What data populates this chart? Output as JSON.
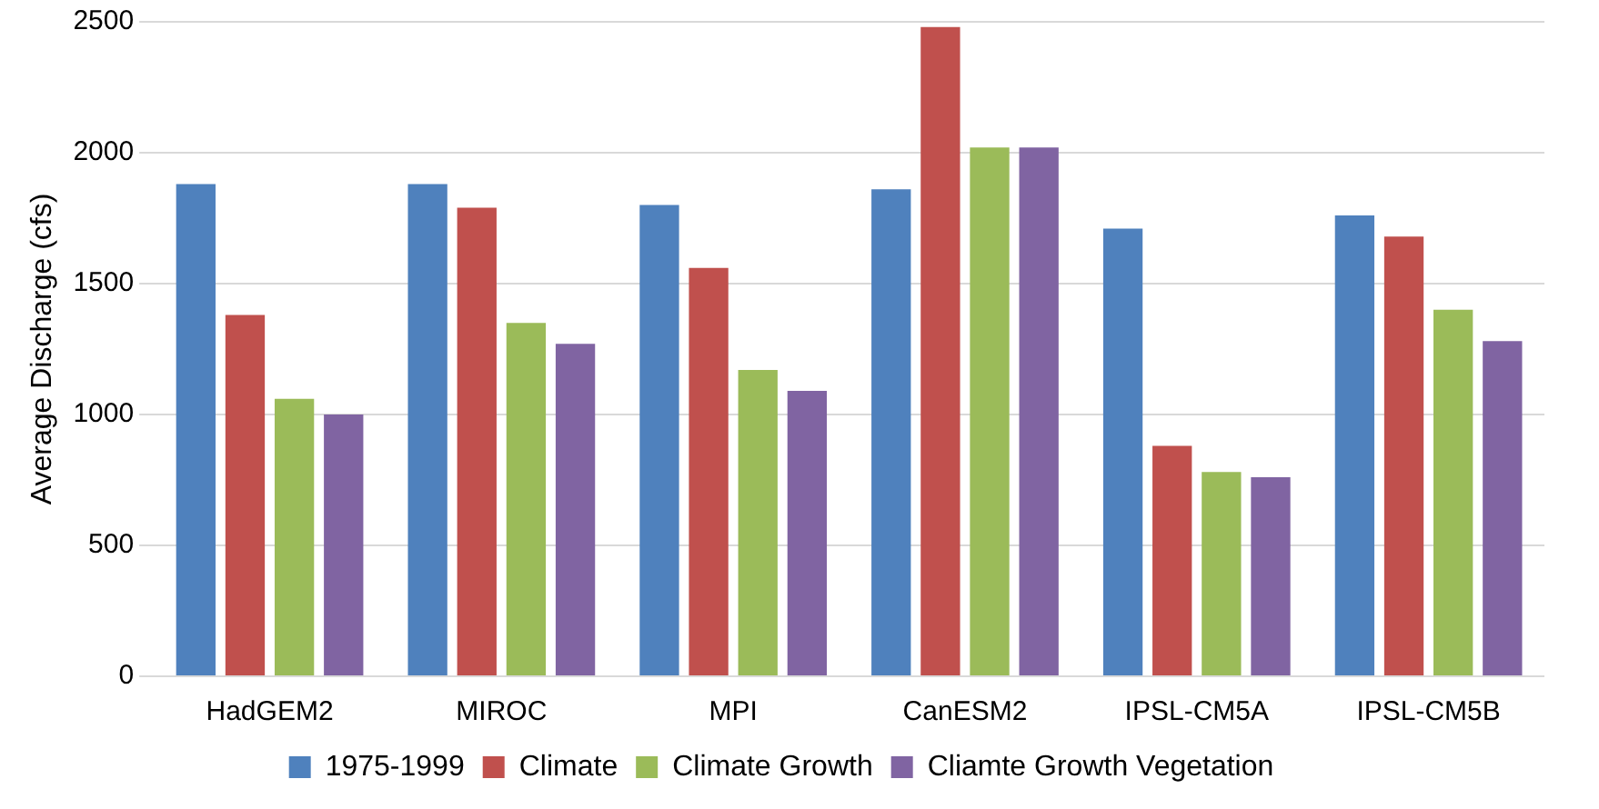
{
  "chart_data": {
    "type": "bar",
    "ylabel": "Average Discharge (cfs)",
    "categories": [
      "HadGEM2",
      "MIROC",
      "MPI",
      "CanESM2",
      "IPSL-CM5A",
      "IPSL-CM5B"
    ],
    "series": [
      {
        "name": "1975-1999",
        "color": "#4f81bd",
        "values": [
          1880,
          1880,
          1800,
          1860,
          1710,
          1760
        ]
      },
      {
        "name": "Climate",
        "color": "#c0504d",
        "values": [
          1380,
          1790,
          1560,
          2480,
          880,
          1680
        ]
      },
      {
        "name": "Climate Growth",
        "color": "#9bbb59",
        "values": [
          1060,
          1350,
          1170,
          2020,
          780,
          1400
        ]
      },
      {
        "name": "Cliamte Growth Vegetation",
        "color": "#8064a2",
        "values": [
          1000,
          1270,
          1090,
          2020,
          760,
          1280
        ]
      }
    ],
    "ylim": [
      0,
      2500
    ],
    "yticks": [
      0,
      500,
      1000,
      1500,
      2000,
      2500
    ],
    "grid": "y",
    "legend": "bottom"
  }
}
